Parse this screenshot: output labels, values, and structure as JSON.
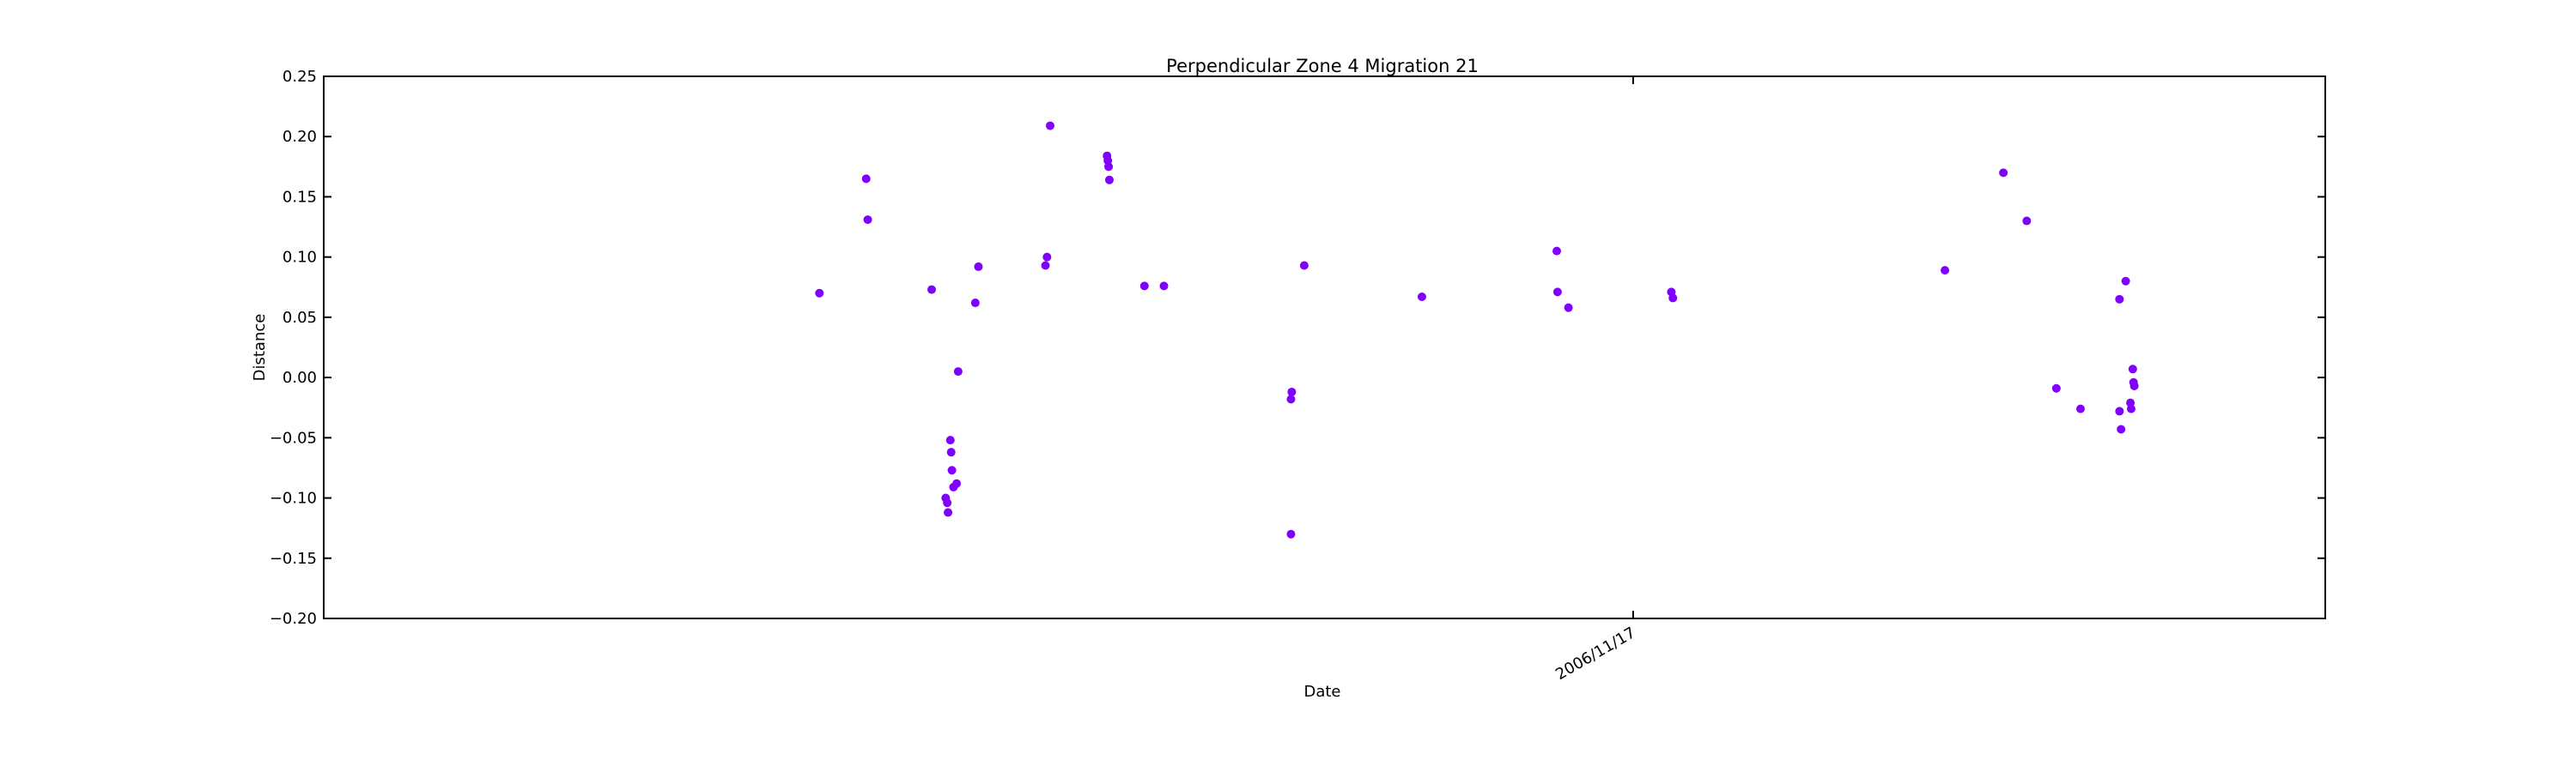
{
  "chart_data": {
    "type": "scatter",
    "title": "Perpendicular Zone 4 Migration 21",
    "xlabel": "Date",
    "ylabel": "Distance",
    "ylim": [
      -0.2,
      0.25
    ],
    "yticks": [
      -0.2,
      -0.15,
      -0.1,
      -0.05,
      0.0,
      0.05,
      0.1,
      0.15,
      0.2,
      0.25
    ],
    "ytick_labels": [
      "−0.20",
      "−0.15",
      "−0.10",
      "−0.05",
      "0.00",
      "0.05",
      "0.10",
      "0.15",
      "0.20",
      "0.25"
    ],
    "xlim": [
      "2006-09-08",
      "2006-12-24"
    ],
    "xticks": [
      "2006-11-17"
    ],
    "xtick_labels": [
      "2006/11/17"
    ],
    "grid": false,
    "legend": "none",
    "series": [
      {
        "color": "#8000ff",
        "points": [
          {
            "x": "2006-10-04 12:00",
            "y": 0.07
          },
          {
            "x": "2006-10-07 00:00",
            "y": 0.165
          },
          {
            "x": "2006-10-07 02:00",
            "y": 0.131
          },
          {
            "x": "2006-10-10 12:00",
            "y": 0.073
          },
          {
            "x": "2006-10-11 06:00",
            "y": -0.1
          },
          {
            "x": "2006-10-11 08:00",
            "y": -0.104
          },
          {
            "x": "2006-10-11 09:00",
            "y": -0.112
          },
          {
            "x": "2006-10-11 12:00",
            "y": -0.052
          },
          {
            "x": "2006-10-11 13:00",
            "y": -0.062
          },
          {
            "x": "2006-10-11 14:00",
            "y": -0.077
          },
          {
            "x": "2006-10-11 16:00",
            "y": -0.091
          },
          {
            "x": "2006-10-11 20:00",
            "y": -0.088
          },
          {
            "x": "2006-10-11 22:00",
            "y": 0.005
          },
          {
            "x": "2006-10-12 20:00",
            "y": 0.062
          },
          {
            "x": "2006-10-13 00:00",
            "y": 0.092
          },
          {
            "x": "2006-10-16 14:00",
            "y": 0.093
          },
          {
            "x": "2006-10-16 16:00",
            "y": 0.1
          },
          {
            "x": "2006-10-16 20:00",
            "y": 0.209
          },
          {
            "x": "2006-10-19 21:00",
            "y": 0.184
          },
          {
            "x": "2006-10-19 22:00",
            "y": 0.18
          },
          {
            "x": "2006-10-19 23:00",
            "y": 0.175
          },
          {
            "x": "2006-10-20 00:00",
            "y": 0.164
          },
          {
            "x": "2006-10-21 21:00",
            "y": 0.076
          },
          {
            "x": "2006-10-22 22:00",
            "y": 0.076
          },
          {
            "x": "2006-10-29 17:00",
            "y": -0.13
          },
          {
            "x": "2006-10-29 17:00",
            "y": -0.018
          },
          {
            "x": "2006-10-29 18:00",
            "y": -0.012
          },
          {
            "x": "2006-10-30 10:00",
            "y": 0.093
          },
          {
            "x": "2006-11-05 17:00",
            "y": 0.067
          },
          {
            "x": "2006-11-12 22:00",
            "y": 0.105
          },
          {
            "x": "2006-11-12 23:00",
            "y": 0.071
          },
          {
            "x": "2006-11-13 13:00",
            "y": 0.058
          },
          {
            "x": "2006-11-19 01:00",
            "y": 0.071
          },
          {
            "x": "2006-11-19 03:00",
            "y": 0.066
          },
          {
            "x": "2006-12-03 16:00",
            "y": 0.089
          },
          {
            "x": "2006-12-06 19:00",
            "y": 0.17
          },
          {
            "x": "2006-12-08 01:00",
            "y": 0.13
          },
          {
            "x": "2006-12-09 15:00",
            "y": -0.009
          },
          {
            "x": "2006-12-10 22:00",
            "y": -0.026
          },
          {
            "x": "2006-12-13 00:00",
            "y": 0.065
          },
          {
            "x": "2006-12-13 00:00",
            "y": -0.028
          },
          {
            "x": "2006-12-13 02:00",
            "y": -0.043
          },
          {
            "x": "2006-12-13 08:00",
            "y": 0.08
          },
          {
            "x": "2006-12-13 14:00",
            "y": -0.021
          },
          {
            "x": "2006-12-13 15:00",
            "y": -0.026
          },
          {
            "x": "2006-12-13 17:00",
            "y": 0.007
          },
          {
            "x": "2006-12-13 18:00",
            "y": -0.004
          },
          {
            "x": "2006-12-13 19:00",
            "y": -0.007
          }
        ]
      }
    ]
  }
}
